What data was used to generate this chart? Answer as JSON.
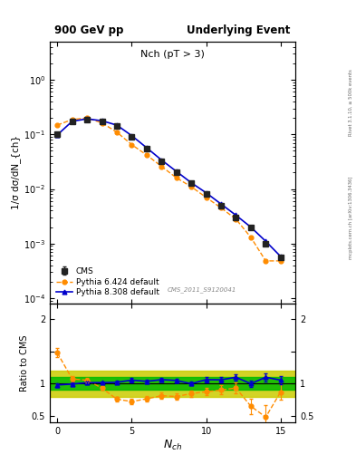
{
  "title_left": "900 GeV pp",
  "title_right": "Underlying Event",
  "plot_title": "Nch (pT > 3)",
  "ylabel_main": "1/σ dσ/dN_{ch}",
  "ylabel_ratio": "Ratio to CMS",
  "watermark": "CMS_2011_S9120041",
  "right_label_top": "Rivet 3.1.10, ≥ 500k events",
  "right_label_bot": "mcplots.cern.ch [arXiv:1306.3436]",
  "cms_x": [
    0,
    1,
    2,
    3,
    4,
    5,
    6,
    7,
    8,
    9,
    10,
    11,
    12,
    13,
    14,
    15
  ],
  "cms_y": [
    0.1,
    0.175,
    0.19,
    0.175,
    0.145,
    0.09,
    0.055,
    0.032,
    0.02,
    0.013,
    0.008,
    0.005,
    0.003,
    0.002,
    0.001,
    0.00055
  ],
  "cms_yerr": [
    0.008,
    0.008,
    0.008,
    0.007,
    0.006,
    0.004,
    0.003,
    0.002,
    0.0012,
    0.0008,
    0.0005,
    0.0003,
    0.0002,
    0.00013,
    8e-05,
    4e-05
  ],
  "py6_x": [
    0,
    1,
    2,
    3,
    4,
    5,
    6,
    7,
    8,
    9,
    10,
    11,
    12,
    13,
    14,
    15
  ],
  "py6_y": [
    0.148,
    0.188,
    0.2,
    0.163,
    0.11,
    0.065,
    0.042,
    0.026,
    0.016,
    0.011,
    0.007,
    0.0045,
    0.0028,
    0.0013,
    0.00048,
    0.00048
  ],
  "py8_x": [
    0,
    1,
    2,
    3,
    4,
    5,
    6,
    7,
    8,
    9,
    10,
    11,
    12,
    13,
    14,
    15
  ],
  "py8_y": [
    0.098,
    0.174,
    0.193,
    0.178,
    0.148,
    0.095,
    0.057,
    0.034,
    0.021,
    0.013,
    0.0085,
    0.0053,
    0.0033,
    0.002,
    0.0011,
    0.00058
  ],
  "ratio_py6": [
    1.48,
    1.074,
    1.053,
    0.931,
    0.759,
    0.722,
    0.764,
    0.813,
    0.8,
    0.846,
    0.875,
    0.9,
    0.933,
    0.65,
    0.48,
    0.87
  ],
  "ratio_py8": [
    0.98,
    0.994,
    1.016,
    1.017,
    1.021,
    1.056,
    1.036,
    1.063,
    1.05,
    1.0,
    1.063,
    1.06,
    1.1,
    1.0,
    1.1,
    1.055
  ],
  "ratio_py6_err": [
    0.07,
    0.04,
    0.03,
    0.03,
    0.04,
    0.04,
    0.04,
    0.05,
    0.05,
    0.05,
    0.06,
    0.07,
    0.08,
    0.12,
    0.18,
    0.12
  ],
  "ratio_py8_err": [
    0.03,
    0.02,
    0.02,
    0.02,
    0.02,
    0.03,
    0.03,
    0.03,
    0.03,
    0.03,
    0.04,
    0.04,
    0.05,
    0.05,
    0.06,
    0.06
  ],
  "color_cms": "#222222",
  "color_py6": "#ff8c00",
  "color_py8": "#0000cc",
  "xlim": [
    -0.5,
    16.0
  ],
  "ylim_main": [
    8e-05,
    5.0
  ],
  "ylim_ratio": [
    0.4,
    2.25
  ],
  "xticks": [
    0,
    5,
    10,
    15
  ]
}
